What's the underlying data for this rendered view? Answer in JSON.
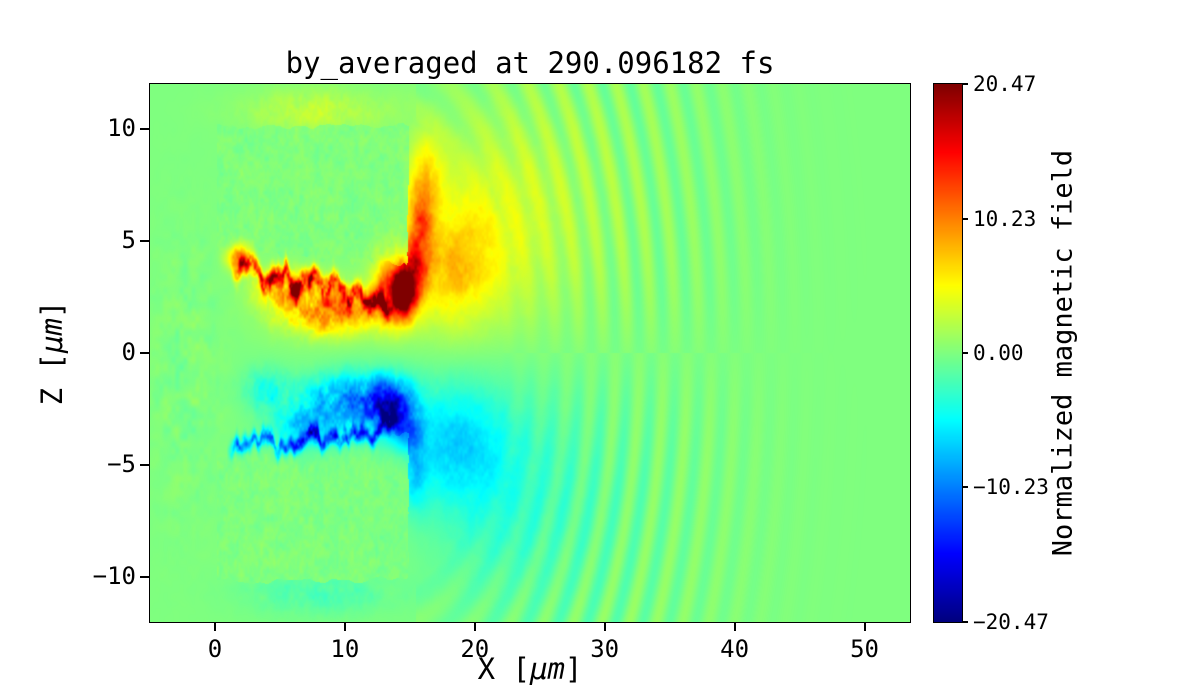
{
  "figure": {
    "colors": {
      "background": "#ffffff",
      "axes": "#000000"
    }
  },
  "chart_data": {
    "type": "heatmap",
    "title": "by_averaged at 290.096182 fs",
    "xlabel": {
      "prefix": "X [",
      "unit": "μm",
      "suffix": "]"
    },
    "ylabel": {
      "prefix": "Z [",
      "unit": "μm",
      "suffix": "]"
    },
    "xlim": [
      -5,
      53.5
    ],
    "zlim": [
      -12,
      12
    ],
    "clim": [
      -20.47,
      20.47
    ],
    "xticks": {
      "values": [
        0,
        10,
        20,
        30,
        40,
        50
      ],
      "labels": [
        "0",
        "10",
        "20",
        "30",
        "40",
        "50"
      ]
    },
    "zticks": {
      "values": [
        10,
        5,
        0,
        -5,
        -10
      ],
      "labels": [
        "10",
        "5",
        "0",
        "−5",
        "−10"
      ]
    },
    "colormap": "jet",
    "grid": false,
    "colorbar": {
      "label": "Normalized magnetic field",
      "position": "right",
      "ticks": {
        "values": [
          20.47,
          10.23,
          0,
          -10.23,
          -20.47
        ],
        "labels": [
          "20.47",
          "10.23",
          "0.00",
          "−10.23",
          "−20.47"
        ]
      }
    },
    "field_model": {
      "note": "Procedural approximation of the rendered simulation field: two neutral target blocks (x 0-15 um, |z| 4.4-10.2 um), a positive (orange/red) lobe in the gap above z=0 peaking ~+20 near (14.5, 2.7), a negative (blue) lobe below z=0 peaking ~-16 near (13.5, -2.5), yellow/cyan plumes extending right, and faint radiated ripples for x>20.",
      "noise_seed": 20470,
      "blob_format": [
        "amp",
        "x",
        "sigma_x",
        "z",
        "sigma_z",
        "noise_mod"
      ],
      "blobs_core": [
        [
          9,
          1.8,
          0.9,
          4.25,
          0.55,
          0.4
        ],
        [
          10.5,
          8.5,
          3.6,
          1.9,
          1.05,
          0.75
        ],
        [
          8,
          5.5,
          2.2,
          2.95,
          0.8,
          0.8
        ],
        [
          13,
          13.8,
          1.5,
          2.8,
          1.5,
          0.45
        ],
        [
          18.5,
          14.55,
          0.8,
          2.65,
          0.95,
          0.1
        ],
        [
          -9.5,
          10.5,
          3.6,
          -2.1,
          1.15,
          0.7
        ],
        [
          -11.5,
          13.5,
          1.8,
          -2.5,
          1.3,
          0.45
        ],
        [
          -7,
          14.9,
          1.1,
          -3.5,
          0.95,
          0.3
        ],
        [
          -6.5,
          7,
          2.5,
          -3.3,
          0.95,
          0.6
        ],
        [
          -4,
          4,
          1.8,
          -1.6,
          0.9,
          0.8
        ]
      ],
      "blobs_halo": [
        [
          9,
          15.3,
          1.0,
          3.6,
          1.3,
          0.3
        ],
        [
          8.5,
          15.7,
          1.05,
          5.4,
          1.9,
          0.35
        ],
        [
          5,
          16.3,
          1.4,
          7.9,
          1.9,
          0.3
        ],
        [
          5.5,
          18.2,
          3.2,
          3.8,
          2.7,
          0.3
        ],
        [
          2.8,
          21,
          5,
          5.5,
          4.5,
          0.25
        ],
        [
          1.5,
          26,
          7,
          6.5,
          5.5,
          0.2
        ],
        [
          2.4,
          8,
          5.5,
          10.8,
          1.0,
          0.9
        ],
        [
          -5,
          18.2,
          3.4,
          -4.0,
          2.6,
          0.3
        ],
        [
          -2.6,
          21,
          5,
          -5.5,
          4.5,
          0.25
        ],
        [
          -1.4,
          26,
          7,
          -6.5,
          5.5,
          0.2
        ],
        [
          -2,
          8,
          5.5,
          -10.7,
          1.0,
          0.9
        ],
        [
          -4.5,
          15.4,
          0.95,
          -5.4,
          1.6,
          0.35
        ]
      ],
      "bands": [
        {
          "amp": 10.5,
          "amp_noise": 7,
          "x0": 1.2,
          "x1": 13.8,
          "z0": 4.15,
          "slope": -0.145,
          "w": 0.38,
          "w_noise": 0.22,
          "jig": 1.0,
          "seed": 40.2
        },
        {
          "amp": -9,
          "amp_noise": -6,
          "x0": 0.9,
          "x1": 14.3,
          "z0": -4.4,
          "slope": 0.068,
          "w": 0.3,
          "w_noise": 0.15,
          "jig": 0.7,
          "seed": 80.7
        }
      ],
      "blocks": {
        "upper": {
          "x0": 0.15,
          "x1": 14.8,
          "edge_slope": 0.03,
          "z_front": 4.35,
          "front_slope": -0.05,
          "z_top": 10.15
        },
        "lower": {
          "x0": 0.15,
          "x1": 14.9,
          "z_front": -4.45,
          "front_slope": 0.07,
          "z_bot": -10.15
        },
        "suppression": 0.93,
        "texture": [
          1.6,
          0.8
        ]
      },
      "ripples": {
        "cx": 13,
        "z_scale": 0.85,
        "r_on": 9,
        "r_peak": 19,
        "r_width": 9,
        "amp": 1.5,
        "k": 3.4,
        "phase": 0.7,
        "z_softness": 3.5
      },
      "left_wisps": {
        "amp": 1.5,
        "x_center": -2.2,
        "x_width": 2.6,
        "z_center": -1,
        "z_width": 6.5
      }
    }
  }
}
